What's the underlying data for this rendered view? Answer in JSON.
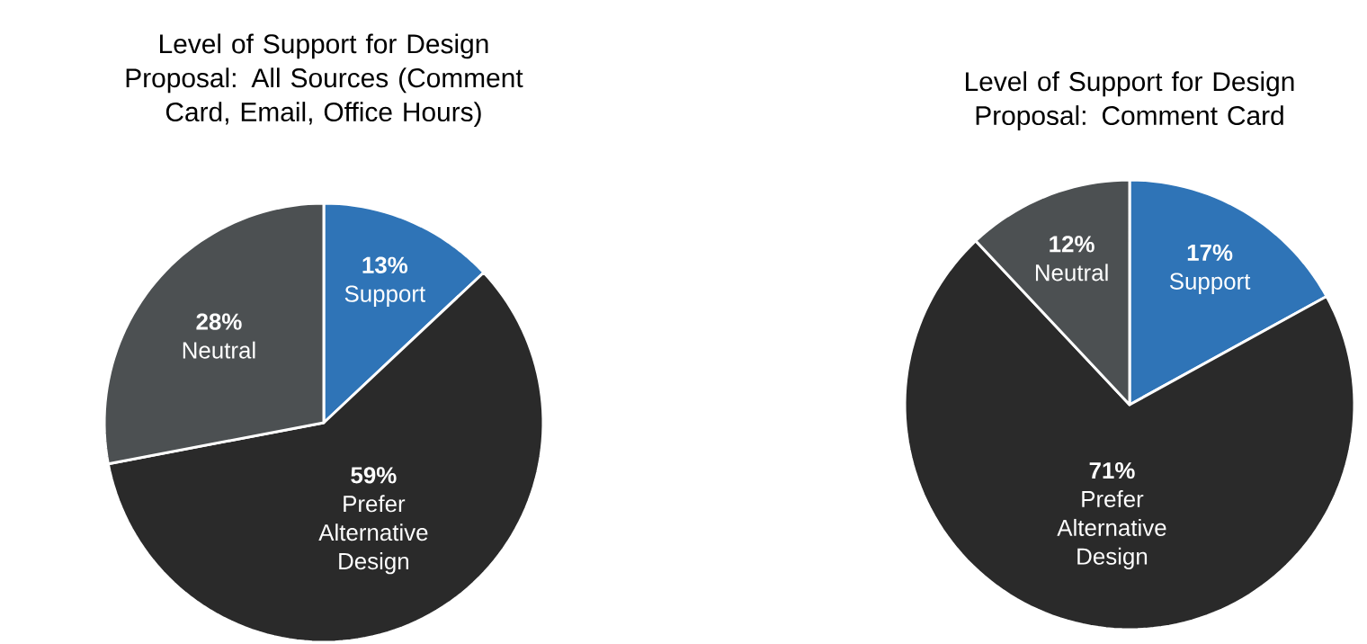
{
  "chart_data": [
    {
      "type": "pie",
      "title": "Level of Support for Design Proposal: All Sources (Comment Card, Email, Office Hours)",
      "categories": [
        "Support",
        "Prefer Alternative Design",
        "Neutral"
      ],
      "values": [
        13,
        59,
        28
      ],
      "value_labels": [
        "13%",
        "59%",
        "28%"
      ],
      "colors": [
        "#2f74b7",
        "#2a2a2a",
        "#4c5052"
      ]
    },
    {
      "type": "pie",
      "title": "Level of Support for Design Proposal: Comment Card",
      "categories": [
        "Support",
        "Prefer Alternative Design",
        "Neutral"
      ],
      "values": [
        17,
        71,
        12
      ],
      "value_labels": [
        "17%",
        "71%",
        "12%"
      ],
      "colors": [
        "#2f74b7",
        "#2a2a2a",
        "#4c5052"
      ]
    }
  ]
}
